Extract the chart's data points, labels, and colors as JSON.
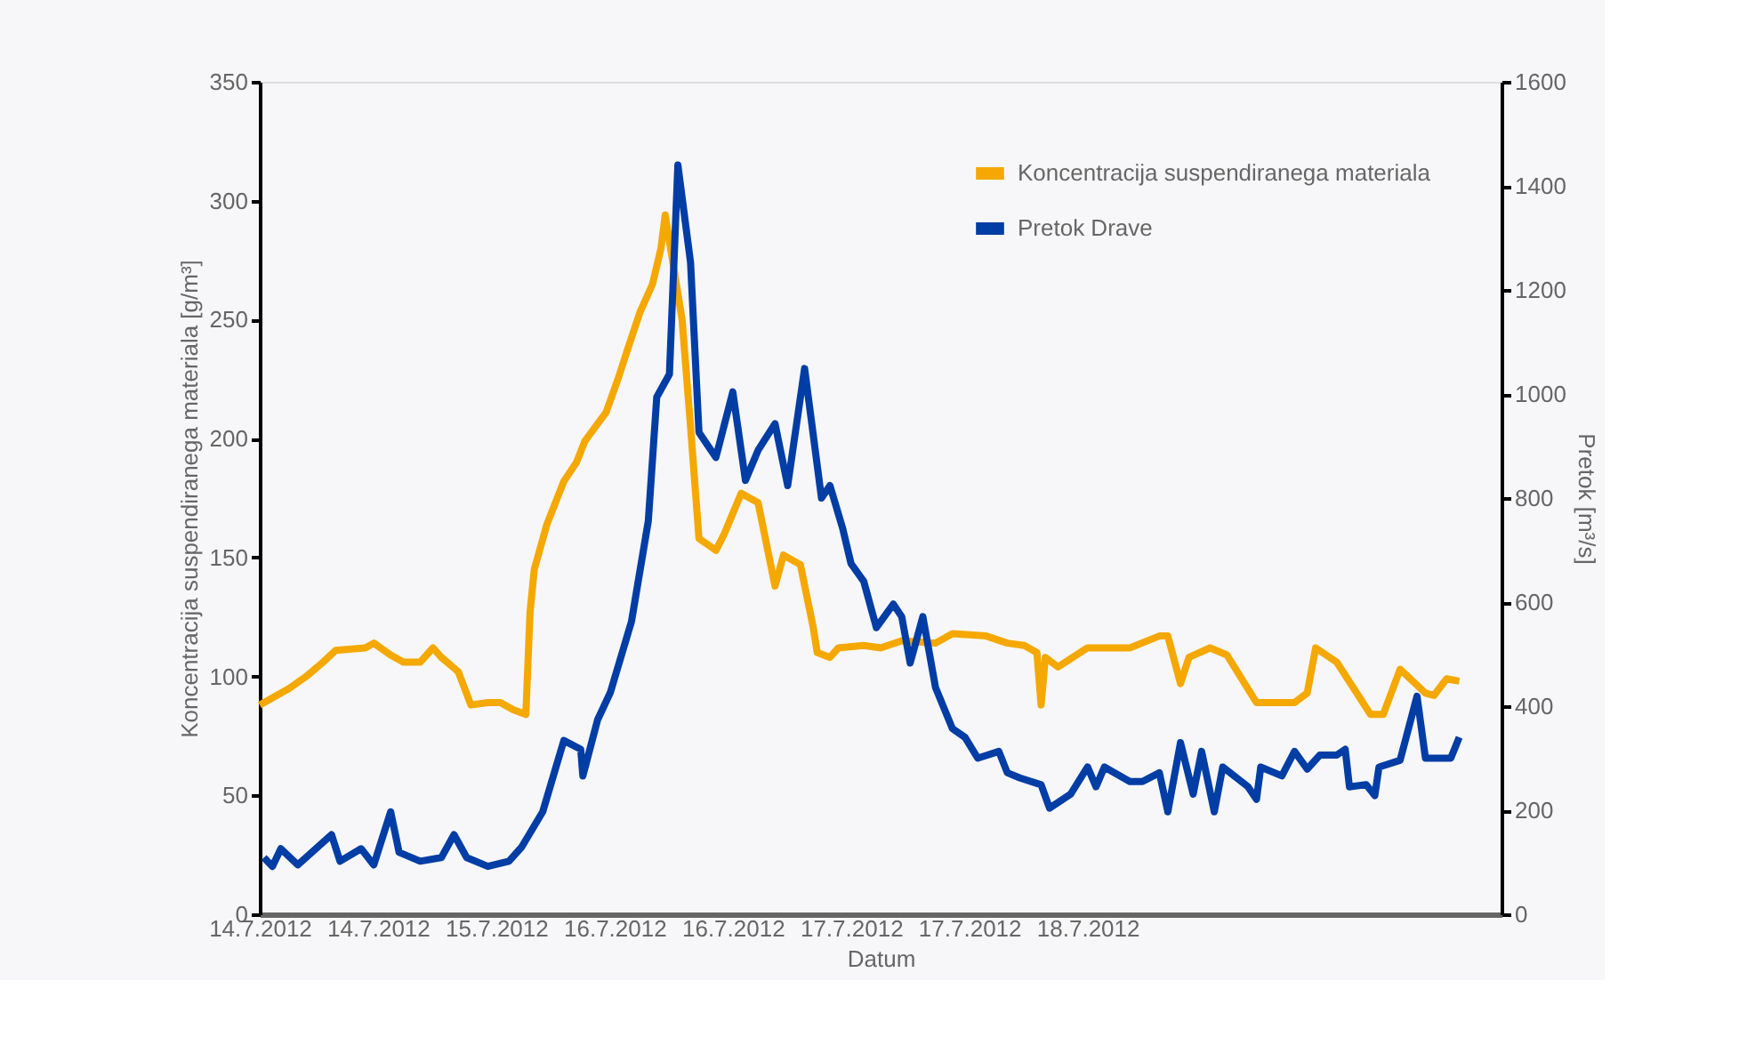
{
  "chart_data": {
    "type": "line",
    "xlabel": "Datum",
    "ylabel": "Koncentracija suspendiranega materiala [g/m³]",
    "y2label": "Pretok [m³/s]",
    "xlim": [
      "2012-07-14T08:00",
      "2012-07-20T11:00"
    ],
    "xticks": [
      {
        "value": "2012-07-14T08:00",
        "label": "14.7.2012"
      },
      {
        "value": "2012-07-14T22:00",
        "label": "14.7.2012"
      },
      {
        "value": "2012-07-15T12:00",
        "label": "15.7.2012"
      },
      {
        "value": "2012-07-16T02:00",
        "label": "16.7.2012"
      },
      {
        "value": "2012-07-16T16:00",
        "label": "16.7.2012"
      },
      {
        "value": "2012-07-17T06:00",
        "label": "17.7.2012"
      },
      {
        "value": "2012-07-17T20:00",
        "label": "17.7.2012"
      },
      {
        "value": "2012-07-18T10:00",
        "label": "18.7.2012"
      }
    ],
    "ylim": [
      0,
      350
    ],
    "yticks": [
      0,
      50,
      100,
      150,
      200,
      250,
      300,
      350
    ],
    "y2lim": [
      0,
      1600
    ],
    "y2ticks": [
      0,
      200,
      400,
      600,
      800,
      1000,
      1200,
      1400,
      1600
    ],
    "grid": false,
    "legend": "top right",
    "marker": "none",
    "line_style": "solid",
    "series": [
      {
        "name": "Koncentracija suspendiranega materiala",
        "color": "#f5a800",
        "x": [
          "2012-07-14T08:00",
          "2012-07-14T10:00",
          "2012-07-14T11:30",
          "2012-07-14T13:30",
          "2012-07-14T15:30",
          "2012-07-14T17:00",
          "2012-07-14T20:30",
          "2012-07-14T21:30",
          "2012-07-14T23:30",
          "2012-07-15T01:00",
          "2012-07-15T03:00",
          "2012-07-15T04:30",
          "2012-07-15T05:30",
          "2012-07-15T07:30",
          "2012-07-15T09:00",
          "2012-07-15T11:00",
          "2012-07-15T12:30",
          "2012-07-15T14:00",
          "2012-07-15T15:30",
          "2012-07-15T16:00",
          "2012-07-15T16:30",
          "2012-07-15T18:00",
          "2012-07-15T20:00",
          "2012-07-15T21:30",
          "2012-07-15T22:30",
          "2012-07-16T01:00",
          "2012-07-16T02:30",
          "2012-07-16T03:30",
          "2012-07-16T05:00",
          "2012-07-16T06:30",
          "2012-07-16T07:30",
          "2012-07-16T08:00",
          "2012-07-16T10:00",
          "2012-07-16T11:00",
          "2012-07-16T12:00",
          "2012-07-16T14:00",
          "2012-07-16T15:00",
          "2012-07-16T17:00",
          "2012-07-16T19:00",
          "2012-07-16T21:00",
          "2012-07-16T22:00",
          "2012-07-17T00:00",
          "2012-07-17T01:30",
          "2012-07-17T02:00",
          "2012-07-17T03:30",
          "2012-07-17T04:30",
          "2012-07-17T07:30",
          "2012-07-17T09:30",
          "2012-07-17T12:00",
          "2012-07-17T16:00",
          "2012-07-17T18:00",
          "2012-07-17T22:00",
          "2012-07-18T00:30",
          "2012-07-18T02:30",
          "2012-07-18T04:00",
          "2012-07-18T04:30",
          "2012-07-18T05:00",
          "2012-07-18T06:30",
          "2012-07-18T10:00",
          "2012-07-18T15:00",
          "2012-07-18T18:30",
          "2012-07-18T19:30",
          "2012-07-18T21:00",
          "2012-07-18T22:00",
          "2012-07-19T00:30",
          "2012-07-19T02:30",
          "2012-07-19T06:00",
          "2012-07-19T10:30",
          "2012-07-19T12:00",
          "2012-07-19T13:00",
          "2012-07-19T15:30",
          "2012-07-19T17:30",
          "2012-07-19T19:30",
          "2012-07-19T21:00",
          "2012-07-19T23:00",
          "2012-07-20T02:00",
          "2012-07-20T03:00",
          "2012-07-20T04:30",
          "2012-07-20T06:00"
        ],
        "values": [
          88,
          92,
          95,
          100,
          106,
          111,
          112,
          114,
          109,
          106,
          106,
          112,
          108,
          102,
          88,
          89,
          89,
          86,
          84,
          127,
          145,
          164,
          182,
          190,
          199,
          211,
          226,
          237,
          253,
          265,
          280,
          294,
          250,
          205,
          158,
          153,
          160,
          177,
          173,
          138,
          151,
          147,
          121,
          110,
          108,
          112,
          113,
          112,
          115,
          114,
          118,
          117,
          114,
          113,
          110,
          88,
          108,
          104,
          112,
          112,
          117,
          117,
          97,
          108,
          112,
          109,
          89,
          89,
          93,
          112,
          106,
          95,
          84,
          84,
          103,
          93,
          92,
          99,
          98
        ]
      },
      {
        "name": "Pretok Drave",
        "color": "#003da5",
        "axis": "y2",
        "x": [
          "2012-07-14T08:30",
          "2012-07-14T09:30",
          "2012-07-14T10:30",
          "2012-07-14T12:30",
          "2012-07-14T16:30",
          "2012-07-14T17:30",
          "2012-07-14T20:00",
          "2012-07-14T21:30",
          "2012-07-14T23:30",
          "2012-07-15T00:30",
          "2012-07-15T03:00",
          "2012-07-15T05:30",
          "2012-07-15T07:00",
          "2012-07-15T08:30",
          "2012-07-15T11:00",
          "2012-07-15T13:30",
          "2012-07-15T15:00",
          "2012-07-15T17:30",
          "2012-07-15T20:00",
          "2012-07-15T22:00",
          "2012-07-15T22:15",
          "2012-07-16T00:00",
          "2012-07-16T01:30",
          "2012-07-16T04:00",
          "2012-07-16T06:00",
          "2012-07-16T07:00",
          "2012-07-16T08:30",
          "2012-07-16T09:30",
          "2012-07-16T11:00",
          "2012-07-16T12:00",
          "2012-07-16T14:00",
          "2012-07-16T16:00",
          "2012-07-16T17:30",
          "2012-07-16T19:00",
          "2012-07-16T21:00",
          "2012-07-16T22:30",
          "2012-07-17T00:30",
          "2012-07-17T02:30",
          "2012-07-17T03:30",
          "2012-07-17T05:00",
          "2012-07-17T06:00",
          "2012-07-17T07:30",
          "2012-07-17T09:00",
          "2012-07-17T11:00",
          "2012-07-17T12:00",
          "2012-07-17T13:00",
          "2012-07-17T14:30",
          "2012-07-17T16:00",
          "2012-07-17T18:00",
          "2012-07-17T19:30",
          "2012-07-17T21:00",
          "2012-07-17T23:30",
          "2012-07-18T00:30",
          "2012-07-18T02:00",
          "2012-07-18T04:30",
          "2012-07-18T05:30",
          "2012-07-18T08:00",
          "2012-07-18T10:00",
          "2012-07-18T11:00",
          "2012-07-18T12:00",
          "2012-07-18T15:00",
          "2012-07-18T16:30",
          "2012-07-18T18:30",
          "2012-07-18T19:30",
          "2012-07-18T21:00",
          "2012-07-18T22:30",
          "2012-07-18T23:30",
          "2012-07-19T01:00",
          "2012-07-19T02:00",
          "2012-07-19T05:00",
          "2012-07-19T06:00",
          "2012-07-19T06:30",
          "2012-07-19T09:00",
          "2012-07-19T10:30",
          "2012-07-19T12:00",
          "2012-07-19T13:30",
          "2012-07-19T15:30",
          "2012-07-19T16:30",
          "2012-07-19T17:00",
          "2012-07-19T19:00",
          "2012-07-19T20:00",
          "2012-07-19T20:30",
          "2012-07-19T23:00",
          "2012-07-20T01:00",
          "2012-07-20T02:00",
          "2012-07-20T05:00",
          "2012-07-20T06:00"
        ],
        "values": [
          109,
          92,
          126,
          95,
          153,
          102,
          126,
          95,
          197,
          119,
          102,
          109,
          153,
          109,
          92,
          102,
          129,
          197,
          334,
          317,
          266,
          374,
          426,
          562,
          756,
          994,
          1038,
          1440,
          1253,
          926,
          878,
          1004,
          834,
          892,
          943,
          824,
          1049,
          800,
          824,
          742,
          674,
          640,
          551,
          596,
          572,
          483,
          572,
          436,
          357,
          340,
          300,
          313,
          272,
          262,
          249,
          204,
          231,
          283,
          245,
          283,
          255,
          255,
          272,
          197,
          330,
          231,
          313,
          197,
          283,
          245,
          221,
          283,
          266,
          313,
          279,
          306,
          306,
          317,
          245,
          249,
          228,
          283,
          296,
          419,
          300,
          300,
          340
        ]
      }
    ]
  }
}
